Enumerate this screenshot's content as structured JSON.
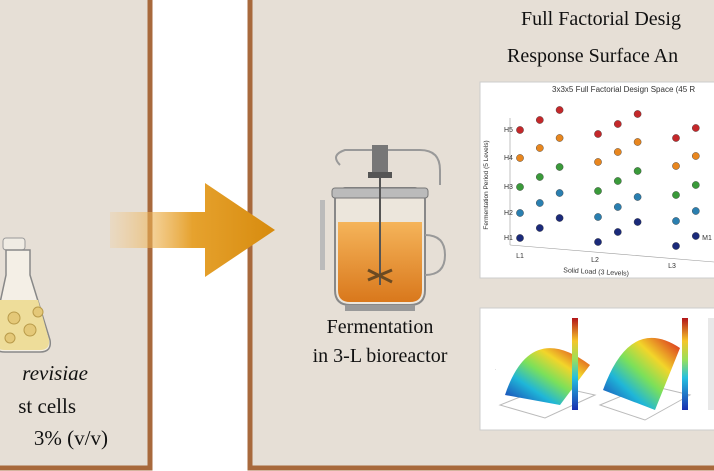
{
  "left_panel": {
    "organism": "revisiae",
    "cells": "st cells",
    "inoculum": "3% (v/v)"
  },
  "bioreactor": {
    "label_line1": "Fermentation",
    "label_line2": "in 3-L bioreactor"
  },
  "header": {
    "line1": "Full Factorial Desig",
    "line2": "Response Surface An"
  },
  "design_plot": {
    "title": "3x3x5 Full Factorial Design Space (45 R",
    "y_label": "Fermentation Period (5 Levels)",
    "x_label": "Solid Load (3 Levels)",
    "x_ticks": [
      "L1",
      "L2",
      "L3",
      "M1"
    ],
    "y_ticks": [
      "H5",
      "H4",
      "H3",
      "H2",
      "H1"
    ]
  }
}
